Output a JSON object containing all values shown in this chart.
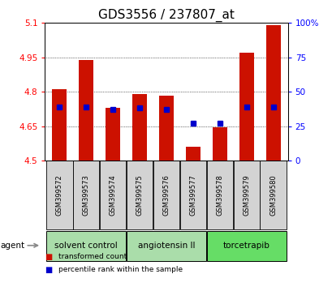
{
  "title": "GDS3556 / 237807_at",
  "samples": [
    "GSM399572",
    "GSM399573",
    "GSM399574",
    "GSM399575",
    "GSM399576",
    "GSM399577",
    "GSM399578",
    "GSM399579",
    "GSM399580"
  ],
  "bar_values": [
    4.81,
    4.94,
    4.73,
    4.79,
    4.785,
    4.56,
    4.645,
    4.97,
    5.09
  ],
  "percentile_values": [
    4.735,
    4.735,
    4.725,
    4.73,
    4.725,
    4.665,
    4.665,
    4.735,
    4.735
  ],
  "ylim": [
    4.5,
    5.1
  ],
  "yticks": [
    4.5,
    4.65,
    4.8,
    4.95,
    5.1
  ],
  "right_yticks_pct": [
    0,
    25,
    50,
    75,
    100
  ],
  "right_ytick_labels": [
    "0",
    "25",
    "50",
    "75",
    "100%"
  ],
  "bar_color": "#cc1100",
  "percentile_color": "#0000cc",
  "bar_bottom": 4.5,
  "groups": [
    {
      "label": "solvent control",
      "indices": [
        0,
        1,
        2
      ],
      "color": "#aaddaa"
    },
    {
      "label": "angiotensin II",
      "indices": [
        3,
        4,
        5
      ],
      "color": "#aaddaa"
    },
    {
      "label": "torcetrapib",
      "indices": [
        6,
        7,
        8
      ],
      "color": "#66dd66"
    }
  ],
  "agent_label": "agent",
  "legend_items": [
    {
      "label": "transformed count",
      "color": "#cc1100"
    },
    {
      "label": "percentile rank within the sample",
      "color": "#0000cc"
    }
  ],
  "title_fontsize": 11,
  "sample_fontsize": 6,
  "group_fontsize": 7.5,
  "tick_fontsize": 7.5,
  "bg_color": "#ffffff",
  "plot_bg": "#ffffff",
  "bar_width": 0.55,
  "sample_box_color": "#d3d3d3"
}
